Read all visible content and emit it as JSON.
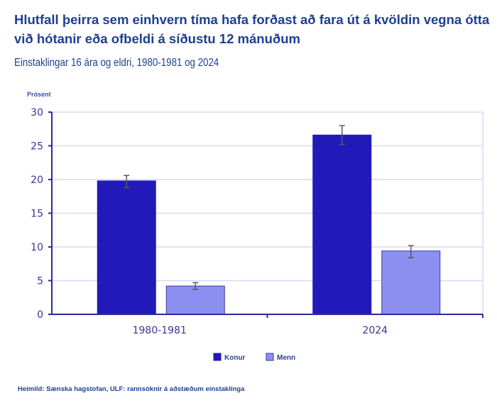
{
  "header": {
    "title": "Hlutfall þeirra sem einhvern tíma hafa forðast að fara út á kvöldin vegna ótta við hótanir eða ofbeldi á síðustu 12 mánuðum",
    "subtitle": "Einstaklingar 16 ára og eldri, 1980-1981 og 2024"
  },
  "footer": {
    "source": "Heimild: Sænska hagstofan, ULF: rannsóknir á aðstæðum einstaklinga"
  },
  "chart_data": {
    "type": "bar",
    "title": "Hlutfall þeirra sem einhvern tíma hafa forðast að fara út á kvöldin vegna ótta við hótanir eða ofbeldi á síðustu 12 mánuðum",
    "subtitle": "Einstaklingar 16 ára og eldri, 1980-1981 og 2024",
    "xlabel": "",
    "ylabel": "Prósent",
    "ylim": [
      0,
      30
    ],
    "yticks": [
      0,
      5,
      10,
      15,
      20,
      25,
      30
    ],
    "grid": true,
    "legend_position": "bottom-center",
    "categories": [
      "1980-1981",
      "2024"
    ],
    "series": [
      {
        "name": "Konur",
        "color": "#2119b8",
        "values": [
          19.8,
          26.6
        ],
        "error_low": [
          18.8,
          25.2
        ],
        "error_high": [
          20.6,
          28.0
        ]
      },
      {
        "name": "Menn",
        "color": "#8c8ff0",
        "values": [
          4.2,
          9.4
        ],
        "error_low": [
          3.7,
          8.4
        ],
        "error_high": [
          4.7,
          10.2
        ]
      }
    ],
    "colors": {
      "axis": "#2e2a9a",
      "grid": "#d9d9f0",
      "error_bar": "#5a5a6a",
      "text": "#1d3f94"
    }
  }
}
